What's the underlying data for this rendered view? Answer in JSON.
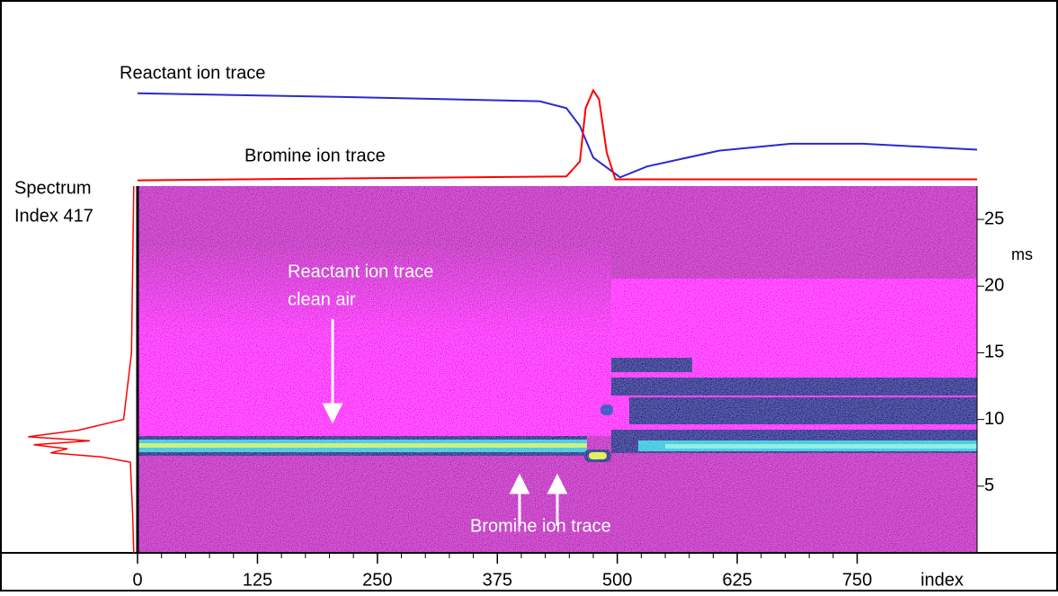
{
  "chart_data": {
    "type": "heatmap",
    "xlim": [
      0,
      875
    ],
    "xticks": [
      0,
      125,
      250,
      375,
      500,
      625,
      750
    ],
    "x_label": "index",
    "ylim": [
      0,
      27.5
    ],
    "yticks": [
      5,
      10,
      15,
      20,
      25
    ],
    "y_label": "ms",
    "trace_ylim": [
      0,
      100
    ],
    "traces": [
      {
        "name": "Reactant ion trace",
        "color": "#2a2ad0",
        "x": [
          0,
          231,
          419,
          447,
          461,
          475,
          503,
          531,
          606,
          681,
          756,
          875
        ],
        "values": [
          92,
          88,
          84,
          77,
          59,
          27,
          7,
          18,
          34,
          41,
          41,
          35
        ]
      },
      {
        "name": "Bromine ion trace",
        "color": "#ff0000",
        "x": [
          0,
          447,
          461,
          467,
          475,
          481,
          489,
          498,
          875
        ],
        "values": [
          4,
          8,
          23,
          77,
          95,
          86,
          32,
          5,
          5
        ]
      }
    ],
    "spectrum": {
      "label": [
        "Spectrum",
        "Index 417"
      ],
      "color": "#ff0000",
      "ms": [
        27.5,
        15,
        10,
        9.2,
        8.7,
        8.4,
        8.1,
        7.8,
        7.5,
        7.2,
        6.8,
        3,
        0
      ],
      "intensity": [
        1,
        3,
        10,
        50,
        95,
        40,
        90,
        60,
        75,
        30,
        4,
        2,
        1
      ]
    },
    "annotations": [
      {
        "lines": [
          "Reactant ion trace",
          "clean air"
        ]
      },
      {
        "lines": [
          "Bromine ion trace"
        ]
      }
    ]
  }
}
